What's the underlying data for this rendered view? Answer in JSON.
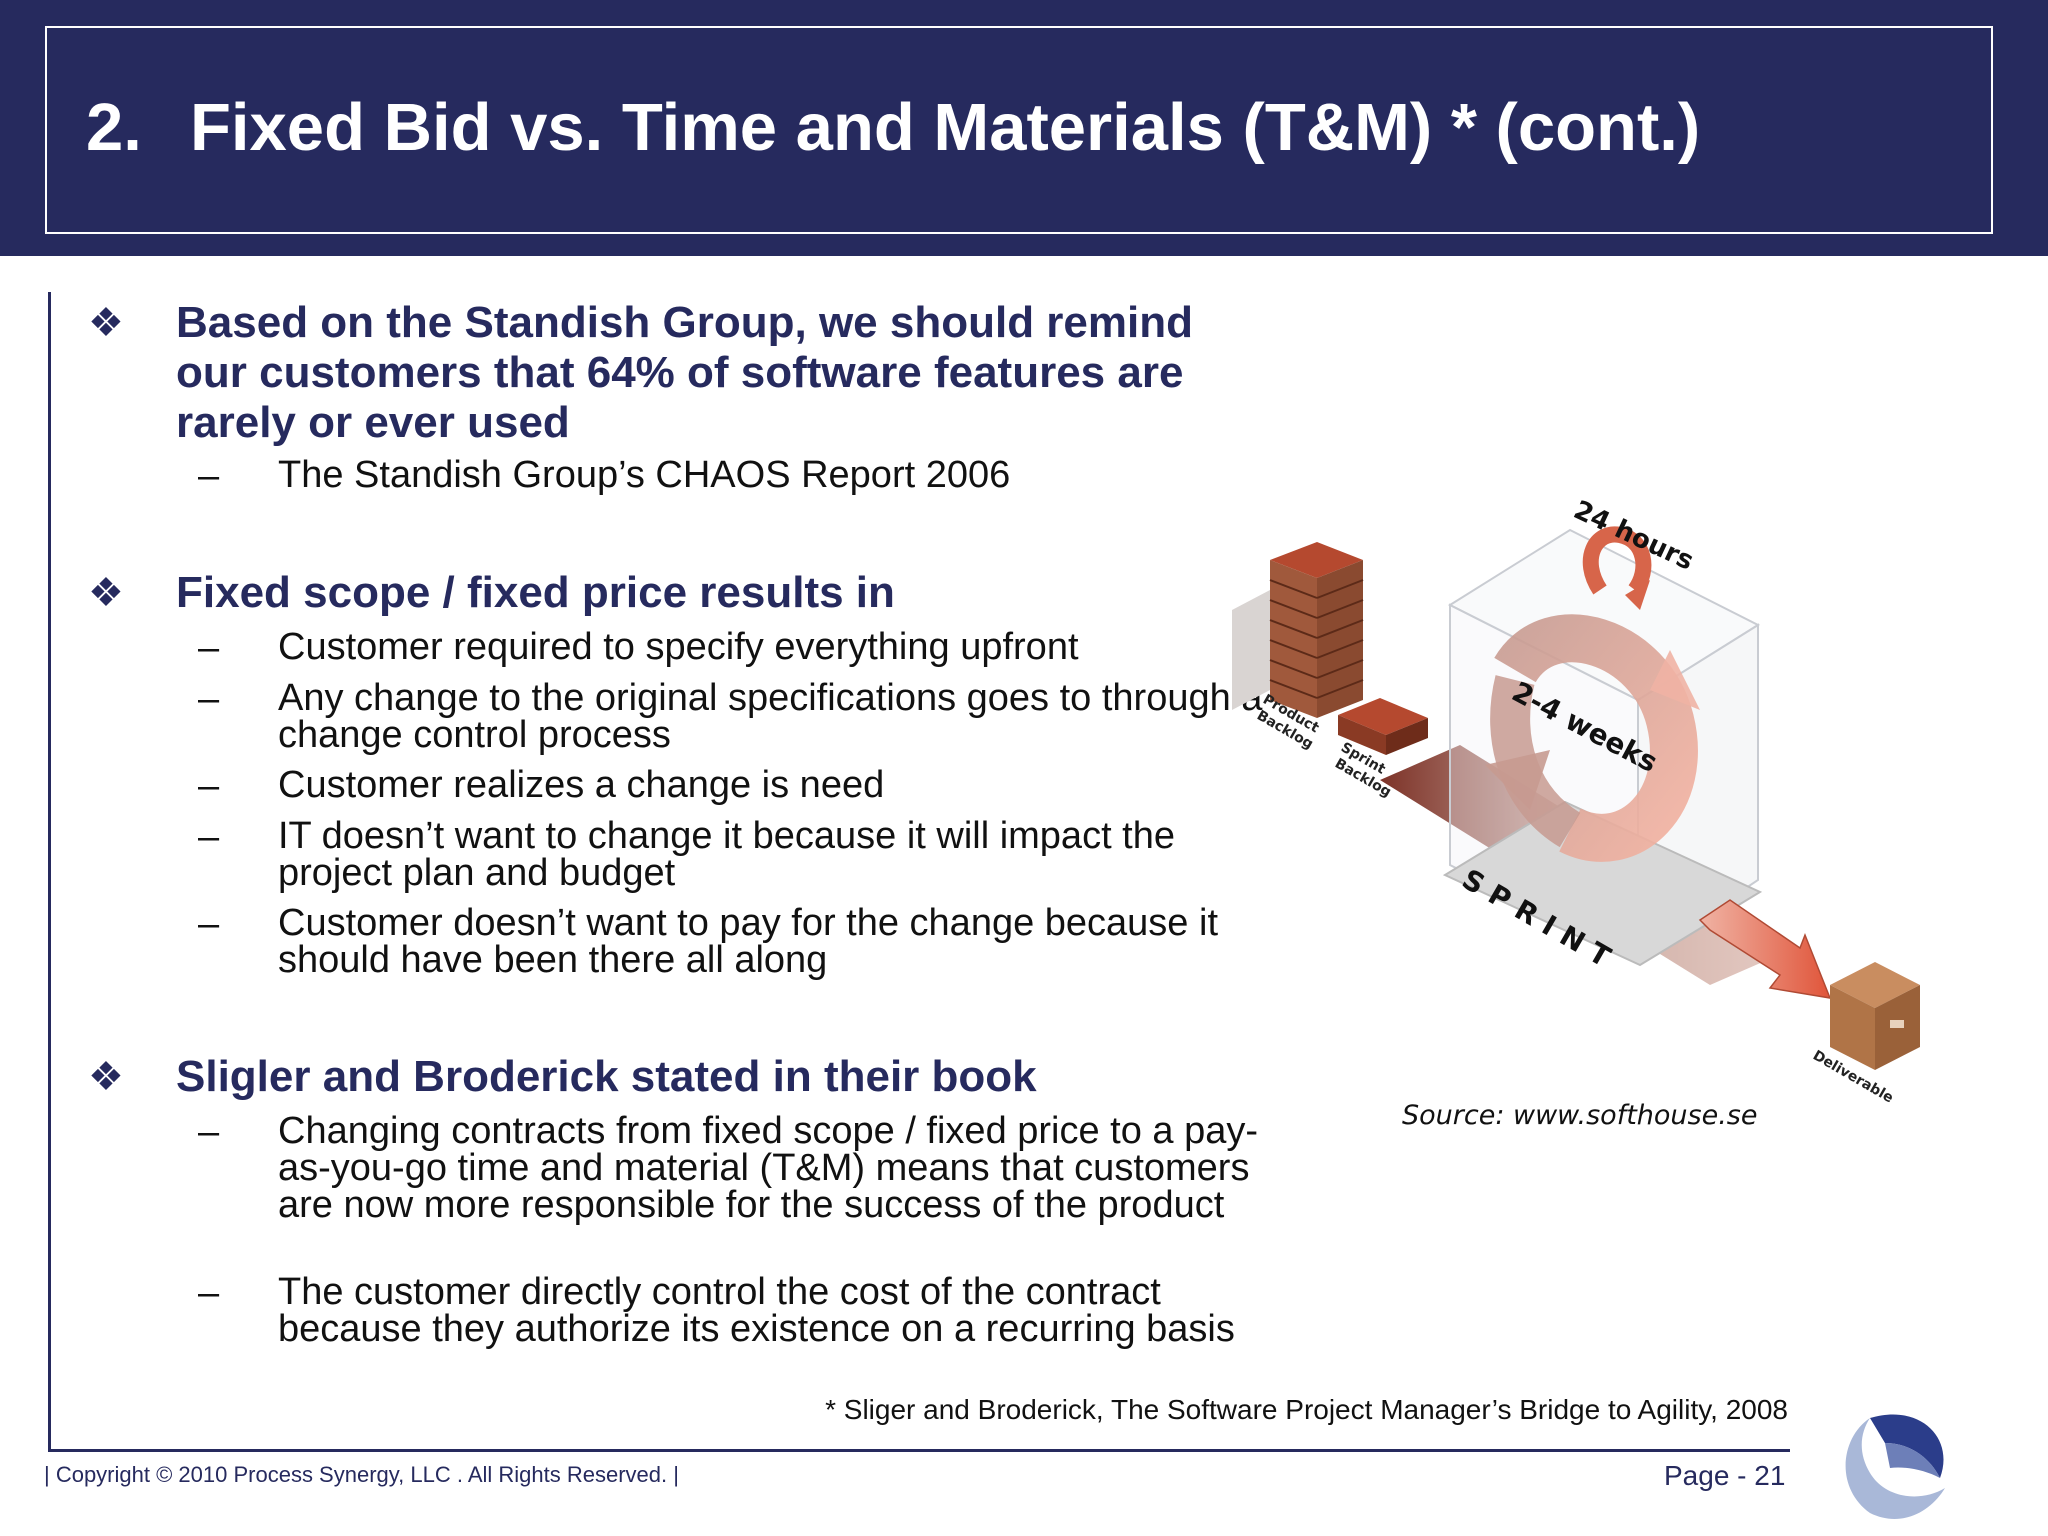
{
  "title": {
    "number": "2.",
    "text": "Fixed Bid  vs. Time and Materials (T&M) * (cont.)"
  },
  "bullet_glyph": "❖",
  "dash_glyph": "–",
  "sections": [
    {
      "main": "Based on the Standish Group, we should remind our customers that 64% of software features are rarely or ever used",
      "subs": [
        "The Standish Group’s CHAOS Report 2006"
      ]
    },
    {
      "main": "Fixed scope / fixed price results in",
      "subs": [
        "Customer required to specify everything upfront",
        "Any change to the original specifications goes to through a change control process",
        "Customer realizes a change is need",
        "IT doesn’t want to change it because it will impact the project plan and budget",
        "Customer doesn’t want to pay for the change because it should have been there all along"
      ]
    },
    {
      "main": "Sligler and Broderick stated in their book",
      "subs": [
        "Changing contracts from fixed scope / fixed price to a pay-as-you-go time and material (T&M) means that customers are now more responsible for the success of the product",
        "The customer directly control the cost of the contract because they authorize its existence on a recurring basis"
      ]
    }
  ],
  "diagram": {
    "label_24h": "24 hours",
    "label_weeks": "2-4 weeks",
    "label_sprint": "SPRINT",
    "label_product_backlog_1": "Product",
    "label_product_backlog_2": "Backlog",
    "label_sprint_backlog_1": "Sprint",
    "label_sprint_backlog_2": "Backlog",
    "label_deliverable": "Deliverable"
  },
  "source": "Source: www.softhouse.se",
  "reference": "* Sliger and Broderick, The Software Project Manager’s Bridge to Agility, 2008",
  "footer": {
    "copyright": "|   Copyright © 2010 Process Synergy, LLC . All Rights Reserved.   |",
    "page": "Page - 21"
  },
  "colors": {
    "navy": "#262a5e",
    "brick": "#b5492f",
    "arrow": "#e06a50",
    "box": "#b87a50"
  }
}
